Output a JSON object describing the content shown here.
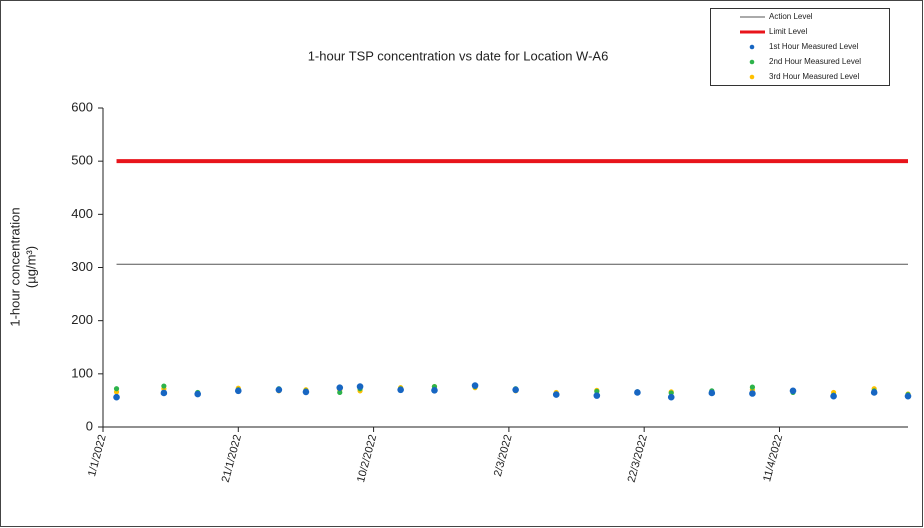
{
  "chart_data": {
    "type": "scatter",
    "title": "1-hour TSP concentration vs date for Location  W-A6",
    "y_label": [
      "1-hour concentration",
      "(µg/m³)"
    ],
    "xlim": [
      "2022-01-01",
      "2022-04-30"
    ],
    "xticks": [
      {
        "value": "2022-01-01",
        "label": "1/1/2022"
      },
      {
        "value": "2022-01-21",
        "label": "21/1/2022"
      },
      {
        "value": "2022-02-10",
        "label": "10/2/2022"
      },
      {
        "value": "2022-03-02",
        "label": "2/3/2022"
      },
      {
        "value": "2022-03-22",
        "label": "22/3/2022"
      },
      {
        "value": "2022-04-11",
        "label": "11/4/2022"
      }
    ],
    "ylim": [
      0,
      600
    ],
    "yticks": [
      0,
      100,
      200,
      300,
      400,
      500,
      600
    ],
    "legend": "top-right",
    "series": [
      {
        "name": "Action Level",
        "color": "#555555",
        "style": "line",
        "x": [
          "2022-01-03",
          "2022-04-30"
        ],
        "values": [
          306,
          306
        ]
      },
      {
        "name": "Limit Level",
        "color": "#e8141b",
        "style": "line",
        "x": [
          "2022-01-03",
          "2022-04-30"
        ],
        "values": [
          500,
          500
        ]
      },
      {
        "name": "1st Hour Measured Level",
        "color": "#1766c2",
        "style": "marker",
        "x": [
          "2022-01-03",
          "2022-01-10",
          "2022-01-15",
          "2022-01-21",
          "2022-01-27",
          "2022-01-31",
          "2022-02-05",
          "2022-02-08",
          "2022-02-14",
          "2022-02-19",
          "2022-02-25",
          "2022-03-03",
          "2022-03-09",
          "2022-03-15",
          "2022-03-21",
          "2022-03-26",
          "2022-04-01",
          "2022-04-07",
          "2022-04-13",
          "2022-04-19",
          "2022-04-25",
          "2022-04-30"
        ],
        "values": [
          56,
          64,
          62,
          68,
          70,
          66,
          74,
          76,
          70,
          69,
          78,
          70,
          61,
          59,
          65,
          56,
          64,
          63,
          68,
          58,
          65,
          58
        ]
      },
      {
        "name": "2nd Hour Measured Level",
        "color": "#2db34a",
        "style": "marker",
        "x": [
          "2022-01-03",
          "2022-01-10",
          "2022-01-15",
          "2022-01-21",
          "2022-01-27",
          "2022-01-31",
          "2022-02-05",
          "2022-02-08",
          "2022-02-14",
          "2022-02-19",
          "2022-02-25",
          "2022-03-03",
          "2022-03-09",
          "2022-03-15",
          "2022-03-21",
          "2022-03-26",
          "2022-04-01",
          "2022-04-07",
          "2022-04-13",
          "2022-04-19",
          "2022-04-25",
          "2022-04-30"
        ],
        "values": [
          72,
          77,
          65,
          70,
          72,
          68,
          65,
          72,
          72,
          76,
          76,
          72,
          62,
          67,
          66,
          64,
          68,
          75,
          65,
          60,
          68,
          61
        ]
      },
      {
        "name": "3rd Hour Measured Level",
        "color": "#ffc000",
        "style": "marker",
        "x": [
          "2022-01-03",
          "2022-01-10",
          "2022-01-15",
          "2022-01-21",
          "2022-01-27",
          "2022-01-31",
          "2022-02-05",
          "2022-02-08",
          "2022-02-14",
          "2022-02-19",
          "2022-02-25",
          "2022-03-03",
          "2022-03-09",
          "2022-03-15",
          "2022-03-21",
          "2022-03-26",
          "2022-04-01",
          "2022-04-07",
          "2022-04-13",
          "2022-04-19",
          "2022-04-25",
          "2022-04-30"
        ],
        "values": [
          66,
          72,
          62,
          73,
          68,
          70,
          70,
          68,
          74,
          76,
          74,
          68,
          65,
          69,
          66,
          66,
          65,
          70,
          68,
          65,
          72,
          62
        ]
      }
    ]
  }
}
